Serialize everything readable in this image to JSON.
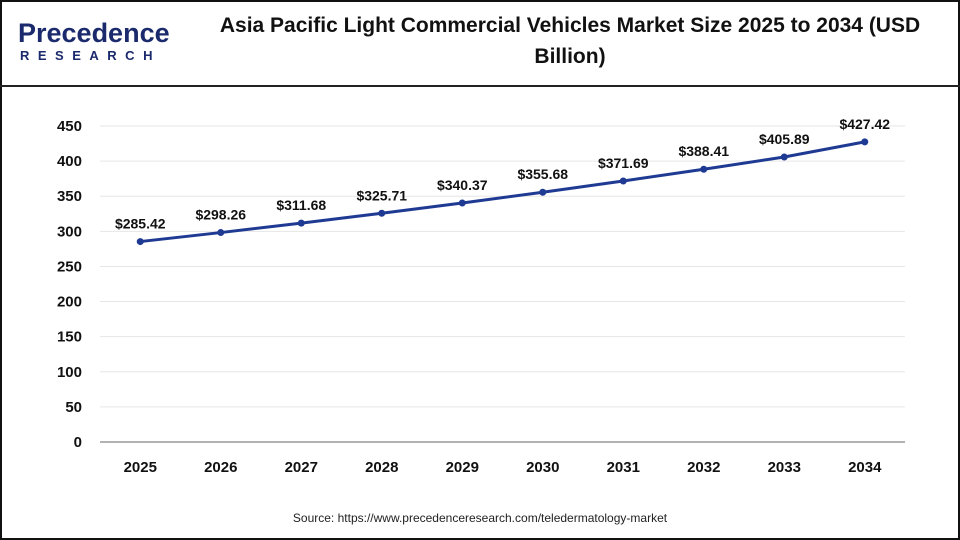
{
  "logo": {
    "brand": "Precedence",
    "sub": "RESEARCH"
  },
  "title": "Asia Pacific Light Commercial Vehicles Market Size 2025 to 2034 (USD Billion)",
  "source": "Source: https://www.precedenceresearch.com/teledermatology-market",
  "colors": {
    "line": "#1f3a93",
    "marker": "#1f3a93",
    "grid": "#e6e6e6",
    "brand": "#1a2a6c"
  },
  "chart_data": {
    "type": "line",
    "title": "Asia Pacific Light Commercial Vehicles Market Size 2025 to 2034 (USD Billion)",
    "xlabel": "",
    "ylabel": "",
    "categories": [
      "2025",
      "2026",
      "2027",
      "2028",
      "2029",
      "2030",
      "2031",
      "2032",
      "2033",
      "2034"
    ],
    "values": [
      285.42,
      298.26,
      311.68,
      325.71,
      340.37,
      355.68,
      371.69,
      388.41,
      405.89,
      427.42
    ],
    "data_labels": [
      "$285.42",
      "$298.26",
      "$311.68",
      "$325.71",
      "$340.37",
      "$355.68",
      "$371.69",
      "$388.41",
      "$405.89",
      "$427.42"
    ],
    "ylim": [
      0,
      450
    ],
    "yticks": [
      "0",
      "50",
      "100",
      "150",
      "200",
      "250",
      "300",
      "350",
      "400",
      "450"
    ],
    "grid": true,
    "legend": "none"
  }
}
